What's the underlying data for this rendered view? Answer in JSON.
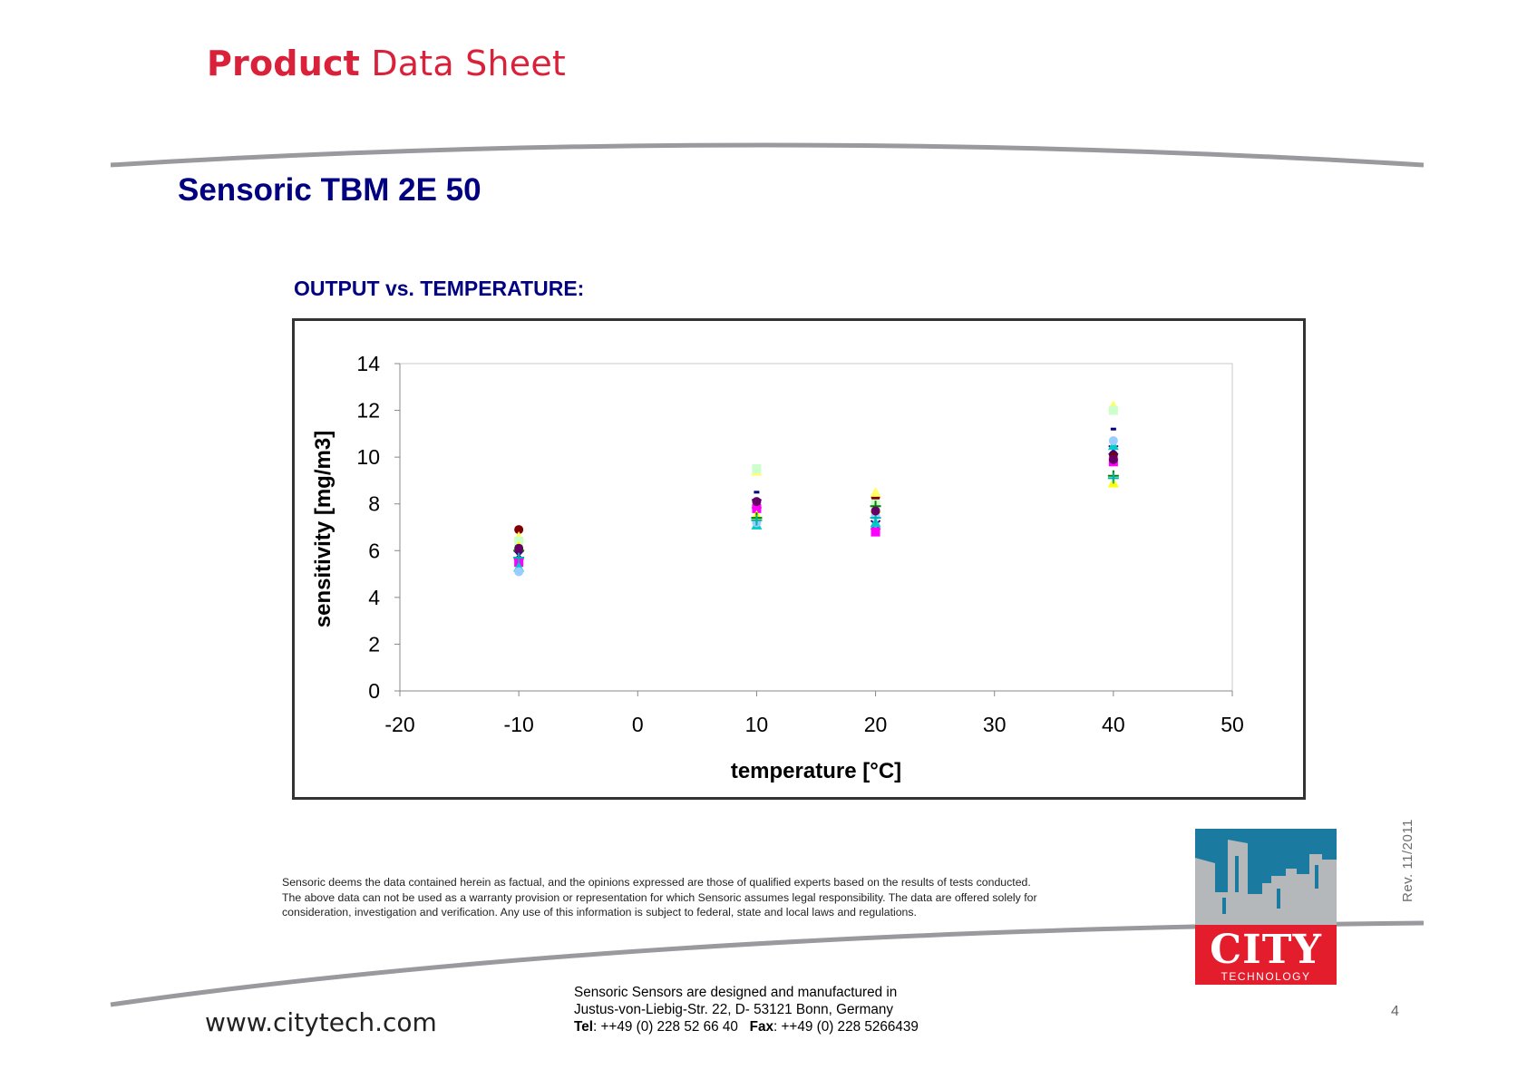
{
  "header": {
    "title_bold": "Product",
    "title_light": "Data Sheet"
  },
  "product": {
    "name": "Sensoric TBM 2E 50"
  },
  "section": {
    "title": "OUTPUT vs. TEMPERATURE:"
  },
  "chart_data": {
    "type": "scatter",
    "title": "",
    "xlabel": "temperature [°C]",
    "ylabel": "sensitivity [mg/m3]",
    "xlim": [
      -20,
      50
    ],
    "ylim": [
      0,
      14
    ],
    "xticks": [
      -20,
      -10,
      0,
      10,
      20,
      30,
      40,
      50
    ],
    "yticks": [
      0,
      2,
      4,
      6,
      8,
      10,
      12,
      14
    ],
    "grid": false,
    "legend": "none",
    "series": [
      {
        "color": "#800000",
        "marker": "circle",
        "points": [
          [
            -10,
            6.9
          ],
          [
            10,
            7.9
          ],
          [
            20,
            8.3
          ],
          [
            40,
            10.1
          ]
        ]
      },
      {
        "color": "#ffff66",
        "marker": "triangle",
        "points": [
          [
            -10,
            6.6
          ],
          [
            10,
            9.4
          ],
          [
            20,
            8.5
          ],
          [
            40,
            12.2
          ]
        ]
      },
      {
        "color": "#ccffcc",
        "marker": "square",
        "points": [
          [
            -10,
            6.4
          ],
          [
            10,
            9.5
          ],
          [
            20,
            8.0
          ],
          [
            40,
            12.0
          ]
        ]
      },
      {
        "color": "#000080",
        "marker": "dash",
        "points": [
          [
            -10,
            5.9
          ],
          [
            10,
            8.5
          ],
          [
            20,
            7.6
          ],
          [
            40,
            11.2
          ]
        ]
      },
      {
        "color": "#400080",
        "marker": "x",
        "points": [
          [
            -10,
            5.8
          ],
          [
            10,
            8.0
          ],
          [
            20,
            7.1
          ],
          [
            40,
            10.3
          ]
        ]
      },
      {
        "color": "#ff00ff",
        "marker": "square",
        "points": [
          [
            -10,
            5.5
          ],
          [
            10,
            7.8
          ],
          [
            20,
            6.8
          ],
          [
            40,
            9.8
          ]
        ]
      },
      {
        "color": "#00cccc",
        "marker": "triangle",
        "points": [
          [
            -10,
            5.3
          ],
          [
            10,
            7.1
          ],
          [
            20,
            7.2
          ],
          [
            40,
            10.5
          ]
        ]
      },
      {
        "color": "#99ccff",
        "marker": "circle",
        "points": [
          [
            -10,
            5.1
          ],
          [
            10,
            7.2
          ],
          [
            20,
            7.5
          ],
          [
            40,
            10.7
          ]
        ]
      },
      {
        "color": "#ffff00",
        "marker": "triangle",
        "points": [
          [
            -10,
            6.2
          ],
          [
            10,
            7.5
          ],
          [
            20,
            7.8
          ],
          [
            40,
            8.9
          ]
        ]
      },
      {
        "color": "#008000",
        "marker": "plus",
        "points": [
          [
            -10,
            6.0
          ],
          [
            10,
            7.4
          ],
          [
            20,
            7.9
          ],
          [
            40,
            9.2
          ]
        ]
      },
      {
        "color": "#00b0b0",
        "marker": "plus",
        "points": [
          [
            -10,
            5.7
          ],
          [
            10,
            7.3
          ],
          [
            20,
            7.4
          ],
          [
            40,
            9.1
          ]
        ]
      },
      {
        "color": "#660066",
        "marker": "circle",
        "points": [
          [
            -10,
            6.1
          ],
          [
            10,
            8.1
          ],
          [
            20,
            7.7
          ],
          [
            40,
            9.9
          ]
        ]
      }
    ]
  },
  "disclaimer": {
    "line1": "Sensoric deems the data contained herein as factual, and the opinions expressed are those of qualified experts based on the results of tests conducted.",
    "line2": "The above data can not be used as a warranty provision or representation for which Sensoric assumes legal responsibility. The data are offered solely for",
    "line3": "consideration, investigation and verification. Any use of this information is subject to federal, state and local laws and regulations."
  },
  "revision": "Rev.  11/2011",
  "logo": {
    "name": "CITY",
    "subtitle": "TECHNOLOGY"
  },
  "colors": {
    "brand_red": "#d9213a",
    "heading_navy": "#000080",
    "logo_blue": "#1a7aa0",
    "logo_grey": "#b5b8ba"
  },
  "footer": {
    "website": "www.citytech.com",
    "address_line1": "Sensoric Sensors are designed and manufactured in",
    "address_line2": "Justus-von-Liebig-Str. 22, D- 53121 Bonn, Germany",
    "tel_label": "Tel",
    "tel_value": ": ++49 (0) 228 52 66 40",
    "fax_label": "Fax",
    "fax_value": ": ++49 (0) 228 5266439",
    "page_number": "4"
  }
}
